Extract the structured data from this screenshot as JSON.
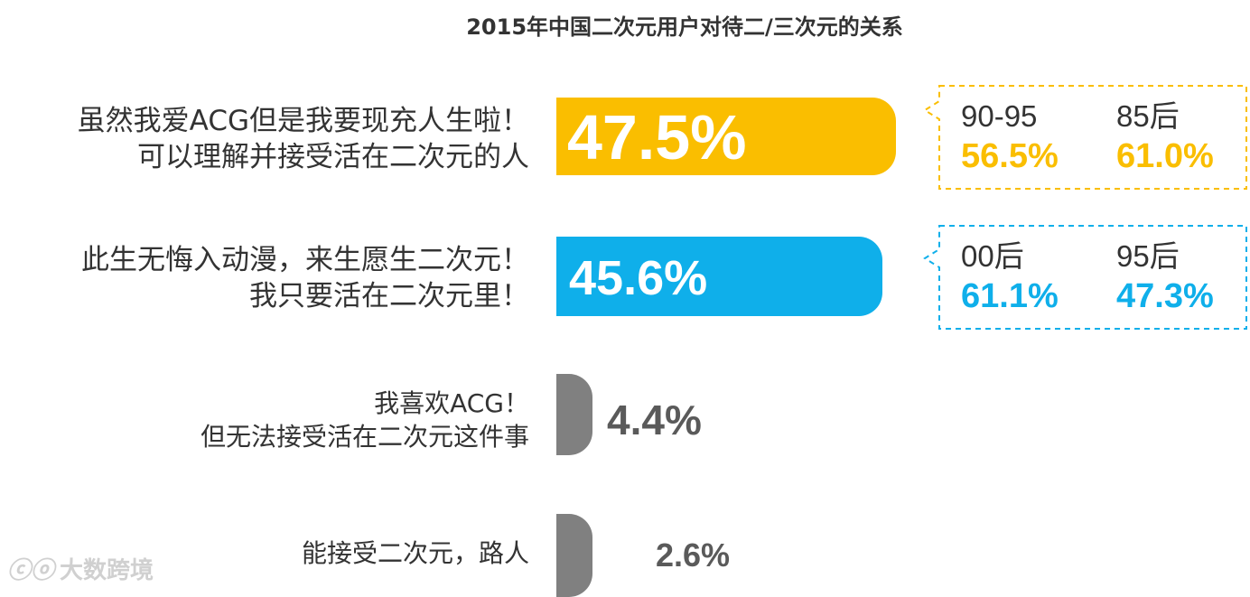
{
  "chart_data": {
    "type": "bar",
    "title": "2015年中国二次元用户对待二/三次元的关系",
    "orientation": "horizontal",
    "categories": [
      [
        "虽然我爱ACG但是我要现充人生啦！",
        "可以理解并接受活在二次元的人"
      ],
      [
        "此生无悔入动漫，来生愿生二次元！",
        "我只要活在二次元里！"
      ],
      [
        "我喜欢ACG！",
        "但无法接受活在二次元这件事"
      ],
      [
        "能接受二次元，路人"
      ]
    ],
    "values": [
      47.5,
      45.6,
      4.4,
      2.6
    ],
    "value_labels": [
      "47.5%",
      "45.6%",
      "4.4%",
      "2.6%"
    ],
    "xlim": [
      0,
      100
    ],
    "bar_colors": [
      "#FABE00",
      "#0FAFEA",
      "#808080",
      "#808080"
    ],
    "callouts": [
      {
        "row": 0,
        "color": "#FABE00",
        "items": [
          {
            "group": "90-95",
            "value_label": "56.5%",
            "value": 56.5
          },
          {
            "group": "85后",
            "value_label": "61.0%",
            "value": 61.0
          }
        ]
      },
      {
        "row": 1,
        "color": "#0FAFEA",
        "items": [
          {
            "group": "00后",
            "value_label": "61.1%",
            "value": 61.1
          },
          {
            "group": "95后",
            "value_label": "47.3%",
            "value": 47.3
          }
        ]
      }
    ]
  },
  "watermark": "大数跨境"
}
